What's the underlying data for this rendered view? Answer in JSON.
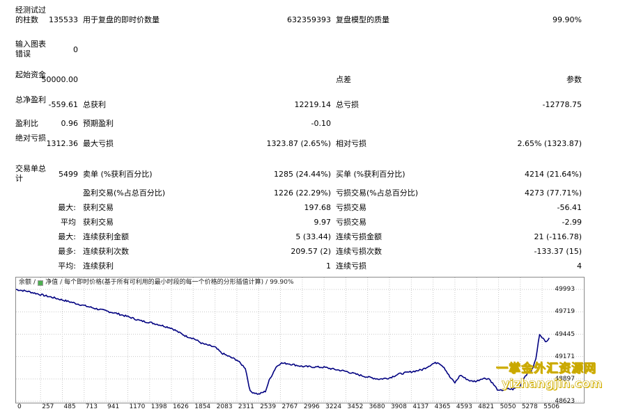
{
  "report": {
    "bars_tested_label": "经测试过的柱数",
    "bars_tested_value": "135533",
    "ticks_label": "用于复盘的即时价数量",
    "ticks_value": "632359393",
    "quality_label": "复盘模型的质量",
    "quality_value": "99.90%",
    "mismatch_label": "输入图表错误",
    "mismatch_value": "0",
    "deposit_label": "起始资金",
    "deposit_value": "50000.00",
    "spread_label": "点差",
    "spread_value": "参数",
    "net_profit_label": "总净盈利",
    "net_profit_value": "-559.61",
    "gross_profit_label": "总获利",
    "gross_profit_value": "12219.14",
    "gross_loss_label": "总亏损",
    "gross_loss_value": "-12778.75",
    "profit_factor_label": "盈利比",
    "profit_factor_value": "0.96",
    "expected_payoff_label": "预期盈利",
    "expected_payoff_value": "-0.10",
    "abs_drawdown_label": "绝对亏损",
    "abs_drawdown_value": "1312.36",
    "max_drawdown_label": "最大亏损",
    "max_drawdown_value": "1323.87 (2.65%)",
    "rel_drawdown_label": "相对亏损",
    "rel_drawdown_value": "2.65% (1323.87)",
    "total_trades_label": "交易单总计",
    "total_trades_value": "5499",
    "short_label": "卖单 (%获利百分比)",
    "short_value": "1285 (24.44%)",
    "long_label": "买单 (%获利百分比)",
    "long_value": "4214 (21.64%)",
    "profit_trades_label": "盈利交易(%占总百分比)",
    "profit_trades_value": "1226 (22.29%)",
    "loss_trades_label": "亏损交易(%占总百分比)",
    "loss_trades_value": "4273 (77.71%)",
    "largest_prefix": "最大:",
    "largest_profit_label": "获利交易",
    "largest_profit_value": "197.68",
    "largest_loss_label": "亏损交易",
    "largest_loss_value": "-56.41",
    "average_prefix": "平均",
    "avg_profit_label": "获利交易",
    "avg_profit_value": "9.97",
    "avg_loss_label": "亏损交易",
    "avg_loss_value": "-2.99",
    "max_prefix": "最大:",
    "max_cons_wins_label": "连续获利金额",
    "max_cons_wins_value": "5 (33.44)",
    "max_cons_losses_label": "连续亏损金额",
    "max_cons_losses_value": "21 (-116.78)",
    "maximal_prefix": "最多:",
    "max_cons_profit_label": "连续获利次数",
    "max_cons_profit_value": "209.57 (2)",
    "max_cons_loss_label": "连续亏损次数",
    "max_cons_loss_value": "-133.37 (15)",
    "avg2_prefix": "平均:",
    "avg_cons_wins_label": "连续获利",
    "avg_cons_wins_value": "1",
    "avg_cons_losses_label": "连续亏损",
    "avg_cons_losses_value": "4"
  },
  "chart_data": {
    "type": "line",
    "legend": {
      "balance": "余额",
      "equity": "净值",
      "description": "每个即时价格(基于所有可利用的最小时段的每一个价格的分形插值计算)",
      "quality": "99.90%"
    },
    "x_ticks": [
      "0",
      "257",
      "485",
      "713",
      "941",
      "1170",
      "1398",
      "1626",
      "1854",
      "2083",
      "2311",
      "2539",
      "2767",
      "2996",
      "3224",
      "3452",
      "3680",
      "3908",
      "4137",
      "4365",
      "4593",
      "4821",
      "5050",
      "5278",
      "5506"
    ],
    "y_ticks": [
      "49993",
      "49719",
      "49445",
      "49171",
      "48897",
      "48623"
    ],
    "ylim": [
      48623,
      50020
    ],
    "xlim": [
      0,
      5600
    ],
    "series": [
      {
        "name": "余额",
        "color": "#000080",
        "x": [
          0,
          120,
          257,
          400,
          485,
          600,
          713,
          830,
          941,
          1050,
          1170,
          1250,
          1300,
          1398,
          1500,
          1626,
          1700,
          1780,
          1854,
          1950,
          2083,
          2150,
          2250,
          2311,
          2400,
          2450,
          2539,
          2610,
          2650,
          2720,
          2767,
          2850,
          2996,
          3100,
          3224,
          3330,
          3452,
          3560,
          3680,
          3800,
          3908,
          4000,
          4137,
          4250,
          4365,
          4420,
          4480,
          4540,
          4593,
          4650,
          4700,
          4760,
          4821,
          4880,
          4950,
          5050,
          5150,
          5200,
          5278,
          5330,
          5400,
          5440,
          5480,
          5506,
          5540,
          5580
        ],
        "y": [
          49993,
          49970,
          49930,
          49890,
          49865,
          49830,
          49795,
          49760,
          49730,
          49700,
          49660,
          49630,
          49610,
          49590,
          49560,
          49520,
          49470,
          49420,
          49395,
          49330,
          49285,
          49215,
          49160,
          49130,
          49030,
          48745,
          48710,
          48745,
          48880,
          49040,
          49090,
          49085,
          49050,
          49045,
          49040,
          49015,
          48990,
          48955,
          48920,
          48895,
          48910,
          48955,
          48985,
          49010,
          49085,
          49100,
          49040,
          48920,
          48850,
          48945,
          48905,
          48870,
          48870,
          48905,
          48900,
          48750,
          48775,
          48770,
          48815,
          48940,
          49005,
          49140,
          49450,
          49410,
          49350,
          49400
        ]
      }
    ]
  },
  "watermark": {
    "line1": "一掌金外汇资源网",
    "line2": "yizhangjin.com"
  }
}
